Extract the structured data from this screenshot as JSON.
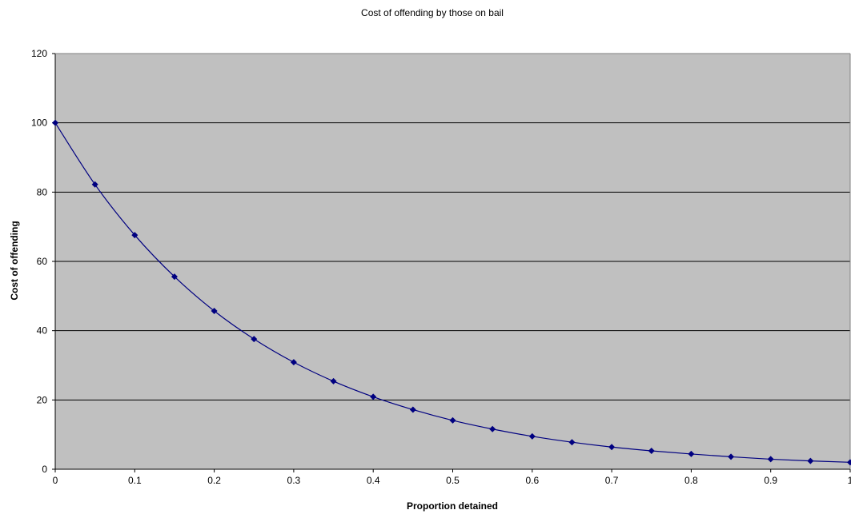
{
  "chart_data": {
    "type": "line",
    "title": "Cost of offending by those on bail",
    "xlabel": "Proportion detained",
    "ylabel": "Cost of offending",
    "xlim": [
      0,
      1
    ],
    "ylim": [
      0,
      120
    ],
    "x_ticks": [
      "0",
      "0.1",
      "0.2",
      "0.3",
      "0.4",
      "0.5",
      "0.6",
      "0.7",
      "0.8",
      "0.9",
      "1"
    ],
    "y_ticks": [
      "0",
      "20",
      "40",
      "60",
      "80",
      "100",
      "120"
    ],
    "grid": true,
    "legend": "none",
    "colors": {
      "plot_background": "#c0c0c0",
      "series": "#000080",
      "gridline": "#000000"
    },
    "series": [
      {
        "marker": "diamond",
        "x": [
          0,
          0.05,
          0.1,
          0.15,
          0.2,
          0.25,
          0.3,
          0.35,
          0.4,
          0.45,
          0.5,
          0.55,
          0.6,
          0.65,
          0.7,
          0.75,
          0.8,
          0.85,
          0.9,
          0.95,
          1
        ],
        "y": [
          100,
          82.2,
          67.6,
          55.6,
          45.7,
          37.6,
          30.9,
          25.4,
          20.9,
          17.2,
          14.1,
          11.6,
          9.5,
          7.8,
          6.4,
          5.3,
          4.4,
          3.6,
          2.9,
          2.4,
          2.0
        ]
      }
    ]
  }
}
